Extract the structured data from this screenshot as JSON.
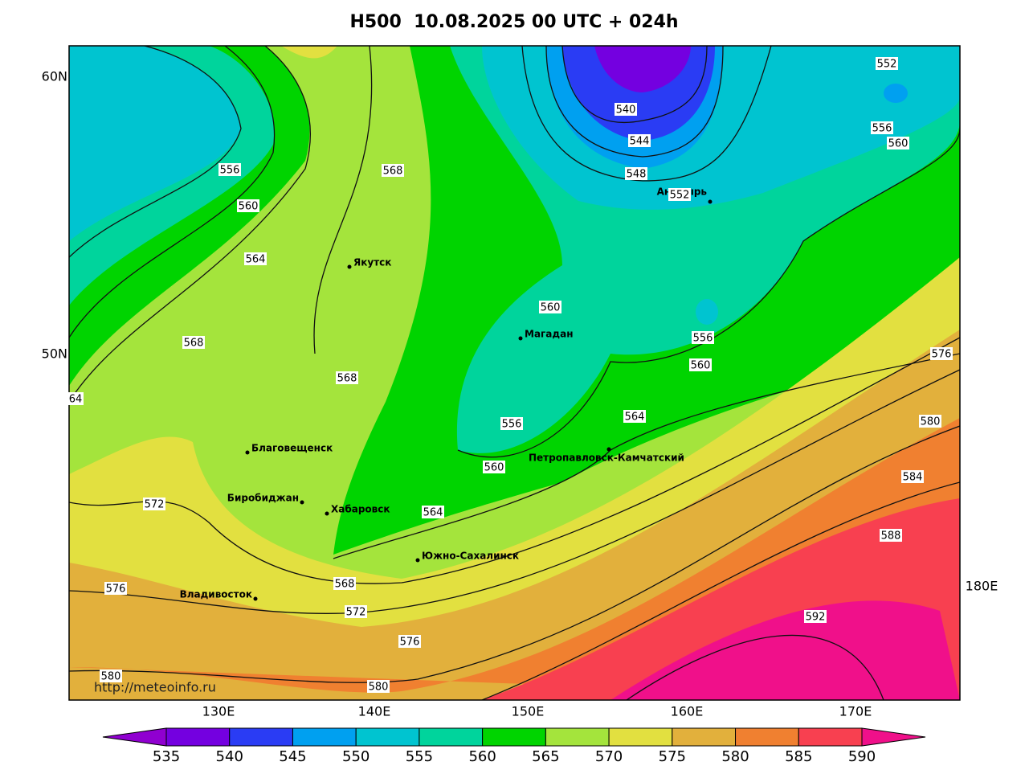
{
  "header": {
    "title": "H500  10.08.2025 00 UTC + 024h"
  },
  "map": {
    "lat_labels": [
      "60N",
      "50N"
    ],
    "lon_labels": [
      "130E",
      "140E",
      "150E",
      "160E",
      "170E",
      "180E"
    ],
    "cities": [
      "Якутск",
      "Магадан",
      "Анадырь",
      "Благовещенск",
      "Биробиджан",
      "Хабаровск",
      "Петропавловск-Камчатский",
      "Южно-Сахалинск",
      "Владивосток"
    ],
    "contour_labels": [
      540,
      544,
      548,
      552,
      552,
      556,
      560,
      556,
      560,
      564,
      568,
      568,
      568,
      560,
      556,
      560,
      564,
      556,
      560,
      564,
      572,
      576,
      568,
      572,
      576,
      580,
      580,
      584,
      588,
      592,
      576,
      580,
      64
    ],
    "source": "http://meteoinfo.ru"
  },
  "colorbar": {
    "labels": [
      535,
      540,
      545,
      550,
      555,
      560,
      565,
      570,
      575,
      580,
      585,
      590
    ],
    "colors": [
      "#9000d0",
      "#7400e0",
      "#2a3cf4",
      "#00a0f0",
      "#00c4d0",
      "#00d49c",
      "#00d400",
      "#a4e43c",
      "#e2e040",
      "#e2b03c",
      "#f08030",
      "#f84050",
      "#f0108a"
    ]
  }
}
